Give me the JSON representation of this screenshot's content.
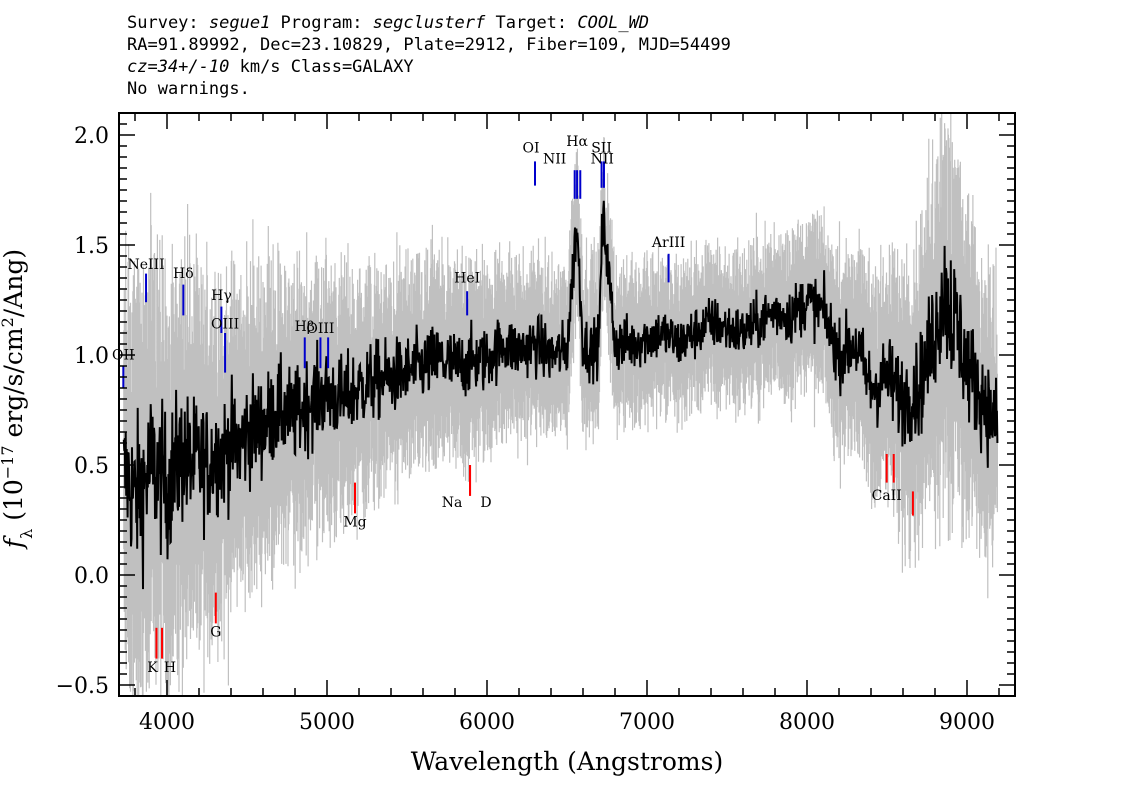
{
  "header": {
    "line1": {
      "survey_label": "Survey: ",
      "survey": "segue1",
      "program_label": " Program: ",
      "program": "segclusterf",
      "target_label": " Target: ",
      "target": "COOL_WD"
    },
    "line2": "RA=91.89992, Dec=23.10829, Plate=2912, Fiber=109, MJD=54499",
    "line3": {
      "cz": "cz=34+/-10",
      "rest": " km/s Class=GALAXY"
    },
    "line4": "No warnings."
  },
  "chart_data": {
    "type": "line",
    "xlabel": "Wavelength (Angstroms)",
    "ylabel": "f_λ (10^-17 erg/s/cm^2/Ang)",
    "ylabel_parts": {
      "f": "f",
      "sub": "λ",
      "pre": " (10",
      "exp": "−17",
      "mid": " erg/s/cm",
      "exp2": "2",
      "post": "/Ang)"
    },
    "xlim": [
      3700,
      9300
    ],
    "ylim": [
      -0.55,
      2.1
    ],
    "xticks": [
      4000,
      5000,
      6000,
      7000,
      8000,
      9000
    ],
    "xtick_labels": [
      "4000",
      "5000",
      "6000",
      "7000",
      "8000",
      "9000"
    ],
    "yticks": [
      -0.5,
      0.0,
      0.5,
      1.0,
      1.5,
      2.0
    ],
    "ytick_labels": [
      "−0.5",
      "0.0",
      "0.5",
      "1.0",
      "1.5",
      "2.0"
    ],
    "series": [
      {
        "role": "flux",
        "color": "#000000",
        "x": [
          3750,
          3800,
          3850,
          3900,
          3950,
          4000,
          4050,
          4100,
          4150,
          4200,
          4250,
          4300,
          4350,
          4400,
          4450,
          4500,
          4600,
          4700,
          4800,
          4900,
          5000,
          5100,
          5200,
          5300,
          5400,
          5500,
          5600,
          5700,
          5800,
          5900,
          6000,
          6100,
          6200,
          6300,
          6400,
          6500,
          6560,
          6600,
          6650,
          6700,
          6716,
          6731,
          6800,
          6900,
          7000,
          7100,
          7200,
          7300,
          7400,
          7500,
          7600,
          7700,
          7800,
          7900,
          8000,
          8100,
          8200,
          8300,
          8400,
          8500,
          8600,
          8700,
          8800,
          8850,
          8900,
          8950,
          9000,
          9100,
          9200
        ],
        "y": [
          0.45,
          0.35,
          0.4,
          0.5,
          0.45,
          0.4,
          0.48,
          0.55,
          0.5,
          0.52,
          0.5,
          0.55,
          0.55,
          0.6,
          0.58,
          0.65,
          0.68,
          0.75,
          0.72,
          0.8,
          0.82,
          0.8,
          0.85,
          0.88,
          0.9,
          0.92,
          0.95,
          0.98,
          0.95,
          0.97,
          0.98,
          1.05,
          1.02,
          1.05,
          1.0,
          1.02,
          1.6,
          1.05,
          1.02,
          1.05,
          1.5,
          1.6,
          1.05,
          1.05,
          1.08,
          1.1,
          1.05,
          1.1,
          1.15,
          1.12,
          1.1,
          1.15,
          1.2,
          1.18,
          1.25,
          1.2,
          1.0,
          1.05,
          0.85,
          0.9,
          0.8,
          0.85,
          1.1,
          1.3,
          1.2,
          1.1,
          0.95,
          0.8,
          0.65
        ]
      },
      {
        "role": "error",
        "color": "#c0c0c0",
        "x": [
          3750,
          3850,
          3950,
          4050,
          4150,
          4250,
          4350,
          4500,
          4700,
          4900,
          5100,
          5300,
          5500,
          5700,
          5900,
          6100,
          6300,
          6500,
          6700,
          6900,
          7100,
          7300,
          7500,
          7700,
          7900,
          8100,
          8300,
          8500,
          8700,
          8850,
          8900,
          9000,
          9100,
          9200
        ],
        "y": [
          0.6,
          0.65,
          0.6,
          0.6,
          0.55,
          0.5,
          0.48,
          0.45,
          0.4,
          0.38,
          0.35,
          0.33,
          0.3,
          0.3,
          0.28,
          0.25,
          0.25,
          0.24,
          0.24,
          0.23,
          0.22,
          0.22,
          0.22,
          0.22,
          0.24,
          0.25,
          0.3,
          0.35,
          0.4,
          0.55,
          0.6,
          0.45,
          0.4,
          0.4
        ]
      }
    ],
    "emission_lines": [
      {
        "label": "OII",
        "wavelength": 3727,
        "y0": 0.85,
        "y1": 0.95,
        "color": "#0000cc",
        "label_y": 0.98
      },
      {
        "label": "NeIII",
        "wavelength": 3869,
        "y0": 1.24,
        "y1": 1.37,
        "color": "#0000cc",
        "label_y": 1.39
      },
      {
        "label": "Hδ",
        "wavelength": 4102,
        "y0": 1.18,
        "y1": 1.32,
        "color": "#0000cc",
        "label_y": 1.35
      },
      {
        "label": "Hγ",
        "wavelength": 4340,
        "y0": 1.1,
        "y1": 1.22,
        "color": "#0000cc",
        "label_y": 1.25
      },
      {
        "label": "OIII",
        "wavelength": 4363,
        "y0": 0.92,
        "y1": 1.1,
        "color": "#0000cc",
        "label_y": 1.12
      },
      {
        "label": "Hβ",
        "wavelength": 4861,
        "y0": 0.94,
        "y1": 1.08,
        "color": "#0000cc",
        "label_y": 1.11
      },
      {
        "label": "OIII",
        "wavelength": 4959,
        "y0": 0.94,
        "y1": 1.08,
        "color": "#0000cc",
        "label_y": 1.1
      },
      {
        "label": "OIII",
        "wavelength": 5007,
        "y0": 0.94,
        "y1": 1.08,
        "color": "#0000cc",
        "label_y": null
      },
      {
        "label": "HeI",
        "wavelength": 5876,
        "y0": 1.18,
        "y1": 1.29,
        "color": "#0000cc",
        "label_y": 1.33
      },
      {
        "label": "OI",
        "wavelength": 6300,
        "y0": 1.77,
        "y1": 1.88,
        "color": "#0000cc",
        "label_y": 1.92
      },
      {
        "label": "NII",
        "wavelength": 6548,
        "y0": 1.71,
        "y1": 1.84,
        "color": "#0000cc",
        "label_y": 1.87
      },
      {
        "label": "Hα",
        "wavelength": 6563,
        "y0": 1.71,
        "y1": 1.84,
        "color": "#0000cc",
        "label_y": 1.95
      },
      {
        "label": "NII",
        "wavelength": 6583,
        "y0": 1.71,
        "y1": 1.84,
        "color": "#0000cc",
        "label_y": 1.87
      },
      {
        "label": "SII",
        "wavelength": 6716,
        "y0": 1.76,
        "y1": 1.88,
        "color": "#0000cc",
        "label_y": 1.92
      },
      {
        "label": "SII",
        "wavelength": 6731,
        "y0": 1.76,
        "y1": 1.88,
        "color": "#0000cc",
        "label_y": null
      },
      {
        "label": "ArIII",
        "wavelength": 7135,
        "y0": 1.33,
        "y1": 1.46,
        "color": "#0000cc",
        "label_y": 1.49
      }
    ],
    "absorption_lines": [
      {
        "label": "K",
        "wavelength": 3934,
        "y0": -0.38,
        "y1": -0.24,
        "color": "#ff0000",
        "label_y": -0.44
      },
      {
        "label": "H",
        "wavelength": 3969,
        "y0": -0.38,
        "y1": -0.24,
        "color": "#ff0000",
        "label_y": -0.44
      },
      {
        "label": "G",
        "wavelength": 4305,
        "y0": -0.22,
        "y1": -0.08,
        "color": "#ff0000",
        "label_y": -0.28
      },
      {
        "label": "Mg",
        "wavelength": 5175,
        "y0": 0.28,
        "y1": 0.42,
        "color": "#ff0000",
        "label_y": 0.22
      },
      {
        "label": "Na",
        "wavelength": 5894,
        "y0": 0.36,
        "y1": 0.5,
        "color": "#ff0000",
        "label_y": 0.31
      },
      {
        "label": "D",
        "wavelength": 5894,
        "y0": 0.36,
        "y1": 0.5,
        "color": "#ff0000",
        "label_y": 0.31
      },
      {
        "label": "CaII",
        "wavelength": 8498,
        "y0": 0.42,
        "y1": 0.55,
        "color": "#ff0000",
        "label_y": 0.34
      },
      {
        "label": "CaII",
        "wavelength": 8542,
        "y0": 0.42,
        "y1": 0.55,
        "color": "#ff0000",
        "label_y": null
      },
      {
        "label": "CaII",
        "wavelength": 8662,
        "y0": 0.27,
        "y1": 0.38,
        "color": "#ff0000",
        "label_y": null
      }
    ]
  }
}
